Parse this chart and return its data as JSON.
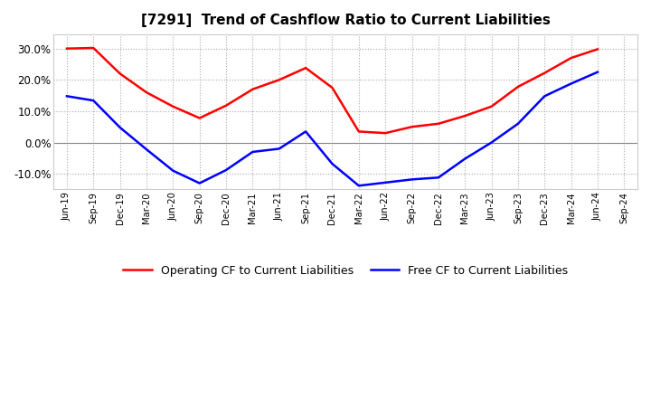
{
  "title": "[7291]  Trend of Cashflow Ratio to Current Liabilities",
  "x_labels": [
    "Jun-19",
    "Sep-19",
    "Dec-19",
    "Mar-20",
    "Jun-20",
    "Sep-20",
    "Dec-20",
    "Mar-21",
    "Jun-21",
    "Sep-21",
    "Dec-21",
    "Mar-22",
    "Jun-22",
    "Sep-22",
    "Dec-22",
    "Mar-23",
    "Jun-23",
    "Sep-23",
    "Dec-23",
    "Mar-24",
    "Jun-24",
    "Sep-24"
  ],
  "operating_cf": [
    0.3,
    0.302,
    0.22,
    0.16,
    0.115,
    0.078,
    0.118,
    0.17,
    0.2,
    0.238,
    0.175,
    0.035,
    0.03,
    0.05,
    0.06,
    0.085,
    0.115,
    0.178,
    0.222,
    0.27,
    0.298,
    null
  ],
  "free_cf": [
    0.148,
    0.134,
    0.048,
    -0.022,
    -0.09,
    -0.13,
    -0.088,
    -0.03,
    -0.02,
    0.035,
    -0.068,
    -0.138,
    -0.128,
    -0.118,
    -0.112,
    -0.052,
    0.0,
    0.06,
    0.148,
    0.188,
    0.225,
    null
  ],
  "operating_color": "#ff0000",
  "free_color": "#0000ff",
  "ylim": [
    -0.15,
    0.345
  ],
  "yticks": [
    -0.1,
    0.0,
    0.1,
    0.2,
    0.3
  ],
  "background_color": "#ffffff",
  "grid_color": "#aaaaaa",
  "title_fontsize": 11,
  "legend_labels": [
    "Operating CF to Current Liabilities",
    "Free CF to Current Liabilities"
  ]
}
